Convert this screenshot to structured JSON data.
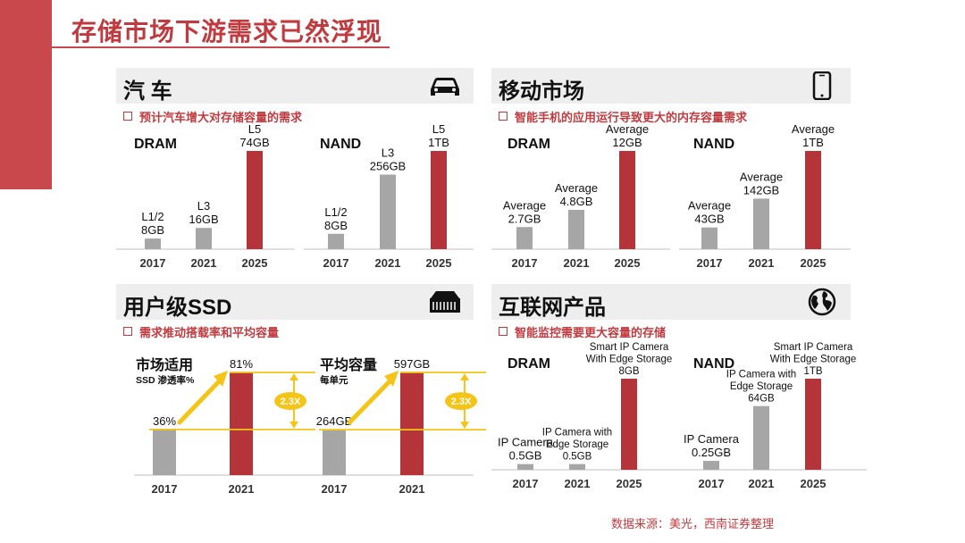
{
  "title": "存储市场下游需求已然浮现",
  "source": "数据来源：美光，西南证券整理",
  "colors": {
    "accent": "#c8484c",
    "bar_gray": "#a6a6a6",
    "bar_red": "#b5343a",
    "arrow_yellow": "#f4c518",
    "badge": "#f4c518"
  },
  "sections": [
    {
      "key": "auto",
      "title": "汽 车",
      "icon": "car-icon",
      "bullet": "预计汽车增大对存储容量的需求"
    },
    {
      "key": "mobile",
      "title": "移动市场",
      "icon": "smartphone-icon",
      "bullet": "智能手机的应用运行导致更大的内存容量需求"
    },
    {
      "key": "ssd",
      "title": "用户级SSD",
      "icon": "ssd-drive-icon",
      "bullet": "需求推动搭载率和平均容量"
    },
    {
      "key": "iot",
      "title": "互联网产品",
      "icon": "globe-icon",
      "bullet": "智能监控需要更大容量的存储"
    }
  ],
  "chart_data": [
    {
      "type": "bar",
      "section": "汽 车",
      "title": "DRAM",
      "categories": [
        "2017",
        "2021",
        "2025"
      ],
      "values": [
        8,
        16,
        74
      ],
      "unit": "GB",
      "data_labels": [
        [
          "L1/2",
          "8GB"
        ],
        [
          "L3",
          "16GB"
        ],
        [
          "L5",
          "74GB"
        ]
      ]
    },
    {
      "type": "bar",
      "section": "汽 车",
      "title": "NAND",
      "categories": [
        "2017",
        "2021",
        "2025"
      ],
      "values": [
        8,
        256,
        1024
      ],
      "unit": "GB",
      "data_labels": [
        [
          "L1/2",
          "8GB"
        ],
        [
          "L3",
          "256GB"
        ],
        [
          "L5",
          "1TB"
        ]
      ]
    },
    {
      "type": "bar",
      "section": "移动市场",
      "title": "DRAM",
      "categories": [
        "2017",
        "2021",
        "2025"
      ],
      "values": [
        2.7,
        4.8,
        12
      ],
      "unit": "GB",
      "data_labels": [
        [
          "Average",
          "2.7GB"
        ],
        [
          "Average",
          "4.8GB"
        ],
        [
          "Average",
          "12GB"
        ]
      ]
    },
    {
      "type": "bar",
      "section": "移动市场",
      "title": "NAND",
      "categories": [
        "2017",
        "2021",
        "2025"
      ],
      "values": [
        43,
        142,
        1024
      ],
      "unit": "GB",
      "data_labels": [
        [
          "Average",
          "43GB"
        ],
        [
          "Average",
          "142GB"
        ],
        [
          "Average",
          "1TB"
        ]
      ]
    },
    {
      "type": "bar",
      "section": "用户级SSD",
      "title": "市场适用",
      "subtitle": "SSD 渗透率%",
      "categories": [
        "2017",
        "2021"
      ],
      "values": [
        36,
        81
      ],
      "unit": "%",
      "data_labels": [
        [
          "36%"
        ],
        [
          "81%"
        ]
      ],
      "multiplier": "2.3X"
    },
    {
      "type": "bar",
      "section": "用户级SSD",
      "title": "平均容量",
      "subtitle": "每单元",
      "categories": [
        "2017",
        "2021"
      ],
      "values": [
        264,
        597
      ],
      "unit": "GB",
      "data_labels": [
        [
          "264GB"
        ],
        [
          "597GB"
        ]
      ],
      "multiplier": "2.3X"
    },
    {
      "type": "bar",
      "section": "互联网产品",
      "title": "DRAM",
      "categories": [
        "2017",
        "2021",
        "2025"
      ],
      "values": [
        0.5,
        0.5,
        8
      ],
      "unit": "GB",
      "data_labels": [
        [
          "IP Camera",
          "0.5GB"
        ],
        [
          "IP Camera with",
          "Edge Storage",
          "0.5GB"
        ],
        [
          "Smart IP Camera",
          "With Edge Storage",
          "8GB"
        ]
      ]
    },
    {
      "type": "bar",
      "section": "互联网产品",
      "title": "NAND",
      "categories": [
        "2017",
        "2021",
        "2025"
      ],
      "values": [
        0.25,
        64,
        1024
      ],
      "unit": "GB",
      "data_labels": [
        [
          "IP Camera",
          "0.25GB"
        ],
        [
          "IP Camera with",
          "Edge Storage",
          "64GB"
        ],
        [
          "Smart IP Camera",
          "With Edge Storage",
          "1TB"
        ]
      ]
    }
  ]
}
